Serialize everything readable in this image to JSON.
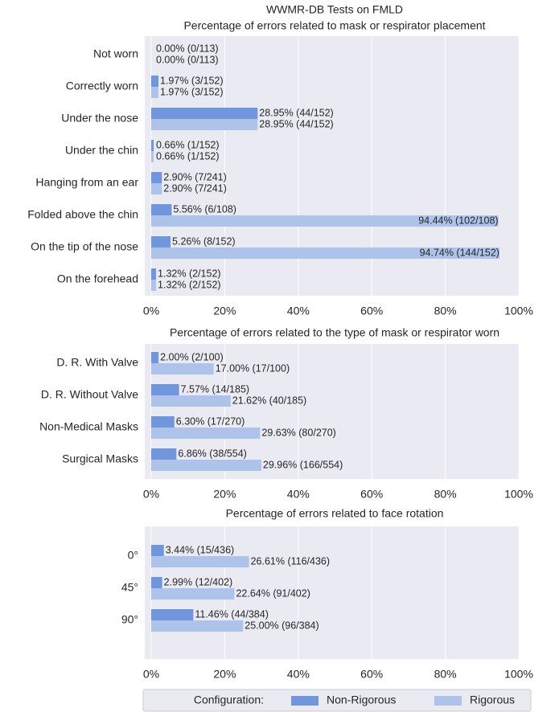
{
  "title": "WWMR-DB Tests on FMLD",
  "legend": {
    "title": "Configuration:"
  },
  "chart_data": [
    {
      "type": "barh",
      "title": "Percentage of errors related to mask or respirator placement",
      "categories": [
        "Not worn",
        "Correctly worn",
        "Under the nose",
        "Under the chin",
        "Hanging from an ear",
        "Folded above the chin",
        "On the tip of the nose",
        "On the forehead"
      ],
      "series": [
        {
          "name": "Non-Rigorous",
          "color": "#7096dc",
          "values": [
            0.0,
            1.97,
            28.95,
            0.66,
            2.9,
            5.56,
            5.26,
            1.32
          ],
          "value_labels": [
            "0.00% (0/113)",
            "1.97% (3/152)",
            "28.95% (44/152)",
            "0.66% (1/152)",
            "2.90% (7/241)",
            "5.56% (6/108)",
            "5.26% (8/152)",
            "1.32% (2/152)"
          ]
        },
        {
          "name": "Rigorous",
          "color": "#aec3ea",
          "values": [
            0.0,
            1.97,
            28.95,
            0.66,
            2.9,
            94.44,
            94.74,
            1.32
          ],
          "value_labels": [
            "0.00% (0/113)",
            "1.97% (3/152)",
            "28.95% (44/152)",
            "0.66% (1/152)",
            "2.90% (7/241)",
            "94.44% (102/108)",
            "94.74% (144/152)",
            "1.32% (2/152)"
          ]
        }
      ],
      "xlim": [
        0,
        100
      ],
      "xticks": [
        {
          "value": 0,
          "label": "0%"
        },
        {
          "value": 20,
          "label": "20%"
        },
        {
          "value": 40,
          "label": "40%"
        },
        {
          "value": 60,
          "label": "60%"
        },
        {
          "value": 80,
          "label": "80%"
        },
        {
          "value": 100,
          "label": "100%"
        }
      ],
      "grid": true
    },
    {
      "type": "barh",
      "title": "Percentage of errors related to the type of mask or respirator worn",
      "categories": [
        "D. R. With Valve",
        "D. R. Without Valve",
        "Non-Medical Masks",
        "Surgical Masks"
      ],
      "series": [
        {
          "name": "Non-Rigorous",
          "color": "#7096dc",
          "values": [
            2.0,
            7.57,
            6.3,
            6.86
          ],
          "value_labels": [
            "2.00% (2/100)",
            "7.57% (14/185)",
            "6.30% (17/270)",
            "6.86% (38/554)"
          ]
        },
        {
          "name": "Rigorous",
          "color": "#aec3ea",
          "values": [
            17.0,
            21.62,
            29.63,
            29.96
          ],
          "value_labels": [
            "17.00% (17/100)",
            "21.62% (40/185)",
            "29.63% (80/270)",
            "29.96% (166/554)"
          ]
        }
      ],
      "xlim": [
        0,
        100
      ],
      "xticks": [
        {
          "value": 0,
          "label": "0%"
        },
        {
          "value": 20,
          "label": "20%"
        },
        {
          "value": 40,
          "label": "40%"
        },
        {
          "value": 60,
          "label": "60%"
        },
        {
          "value": 80,
          "label": "80%"
        },
        {
          "value": 100,
          "label": "100%"
        }
      ],
      "grid": true
    },
    {
      "type": "barh",
      "title": "Percentage of errors related to face rotation",
      "categories": [
        "0°",
        "45°",
        "90°"
      ],
      "series": [
        {
          "name": "Non-Rigorous",
          "color": "#7096dc",
          "values": [
            3.44,
            2.99,
            11.46
          ],
          "value_labels": [
            "3.44% (15/436)",
            "2.99% (12/402)",
            "11.46% (44/384)"
          ]
        },
        {
          "name": "Rigorous",
          "color": "#aec3ea",
          "values": [
            26.61,
            22.64,
            25.0
          ],
          "value_labels": [
            "26.61% (116/436)",
            "22.64% (91/402)",
            "25.00% (96/384)"
          ]
        }
      ],
      "xlim": [
        0,
        100
      ],
      "xticks": [
        {
          "value": 0,
          "label": "0%"
        },
        {
          "value": 20,
          "label": "20%"
        },
        {
          "value": 40,
          "label": "40%"
        },
        {
          "value": 60,
          "label": "60%"
        },
        {
          "value": 80,
          "label": "80%"
        },
        {
          "value": 100,
          "label": "100%"
        }
      ],
      "grid": true
    }
  ]
}
